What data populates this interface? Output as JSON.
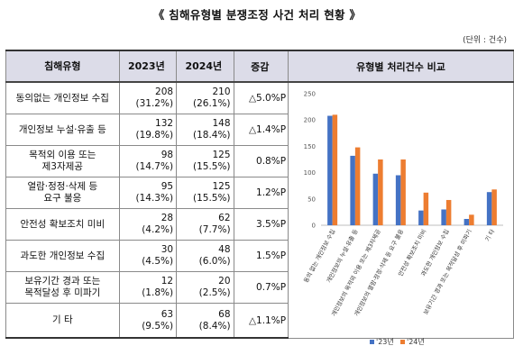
{
  "title": "《 침해유형별 분쟁조정 사건 처리 현황 》",
  "unit": "(단위 : 건수)",
  "table": {
    "headers": [
      "침해유형",
      "2023년",
      "2024년",
      "증감",
      "유형별 처리건수 비교"
    ],
    "rows": [
      {
        "type": [
          "동의없는 개인정보 수집"
        ],
        "y2023": "208",
        "p2023": "(31.2%)",
        "y2024": "210",
        "p2024": "(26.1%)",
        "change": "△5.0%P"
      },
      {
        "type": [
          "개인정보 누설·유출 등"
        ],
        "y2023": "132",
        "p2023": "(19.8%)",
        "y2024": "148",
        "p2024": "(18.4%)",
        "change": "△1.4%P"
      },
      {
        "type": [
          "목적외 이용 또는",
          "제3자제공"
        ],
        "y2023": "98",
        "p2023": "(14.7%)",
        "y2024": "125",
        "p2024": "(15.5%)",
        "change": "0.8%P"
      },
      {
        "type": [
          "열람·정정·삭제 등",
          "요구 불응"
        ],
        "y2023": "95",
        "p2023": "(14.3%)",
        "y2024": "125",
        "p2024": "(15.5%)",
        "change": "1.2%P"
      },
      {
        "type": [
          "안전성 확보조치 미비"
        ],
        "y2023": "28",
        "p2023": "(4.2%)",
        "y2024": "62",
        "p2024": "(7.7%)",
        "change": "3.5%P"
      },
      {
        "type": [
          "과도한 개인정보 수집"
        ],
        "y2023": "30",
        "p2023": "(4.5%)",
        "y2024": "48",
        "p2024": "(6.0%)",
        "change": "1.5%P"
      },
      {
        "type": [
          "보유기간 경과 또는",
          "목적달성 후 미파기"
        ],
        "y2023": "12",
        "p2023": "(1.8%)",
        "y2024": "20",
        "p2024": "(2.5%)",
        "change": "0.7%P"
      },
      {
        "type": [
          "기 타"
        ],
        "y2023": "63",
        "p2023": "(9.5%)",
        "y2024": "68",
        "p2024": "(8.4%)",
        "change": "△1.1%P"
      }
    ]
  },
  "chart_data": {
    "type": "bar",
    "categories": [
      "동의 없는 개인정보 수집",
      "개인정보의 누설·유출 등",
      "개인정보의 목적외 이용 또는 제3자제공",
      "개인정보의 열람·정정·삭제 등 요구 불응",
      "안전성 확보조치 미비",
      "과도한 개인정보 수집",
      "보유기간 경과 또는 목적달성 후 미파기",
      "기 타"
    ],
    "series": [
      {
        "name": "'23년",
        "values": [
          208,
          132,
          98,
          95,
          28,
          30,
          12,
          63
        ],
        "color": "#4472c4"
      },
      {
        "name": "'24년",
        "values": [
          210,
          148,
          125,
          125,
          62,
          48,
          20,
          68
        ],
        "color": "#ed7d31"
      }
    ],
    "ylim": [
      0,
      250
    ],
    "yticks": [
      "0",
      "50",
      "100",
      "150",
      "200",
      "250"
    ],
    "grid": false,
    "legend": "bottom"
  }
}
